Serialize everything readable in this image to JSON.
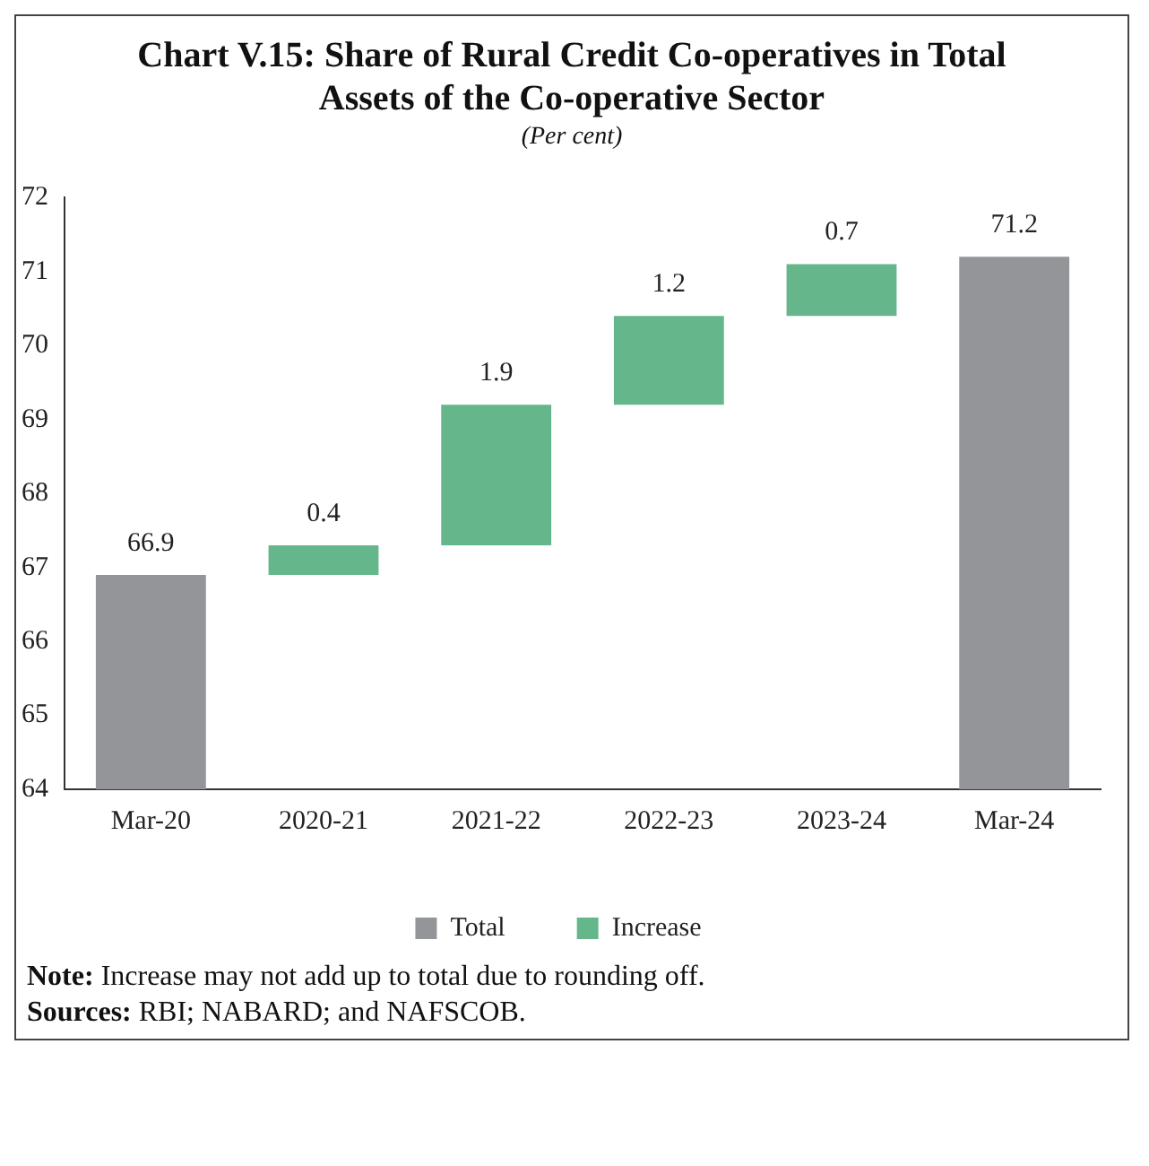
{
  "chart_data": {
    "type": "bar",
    "title": "Chart V.15: Share of Rural Credit Co-operatives in Total Assets of the Co-operative Sector",
    "subtitle": "(Per cent)",
    "categories": [
      "Mar-20",
      "2020-21",
      "2021-22",
      "2022-23",
      "2023-24",
      "Mar-24"
    ],
    "series": [
      {
        "name": "Total",
        "color": "#939598",
        "base": [
          64,
          null,
          null,
          null,
          null,
          64
        ],
        "values": [
          2.9,
          null,
          null,
          null,
          null,
          7.2
        ]
      },
      {
        "name": "Increase",
        "color": "#66b68c",
        "base": [
          null,
          66.9,
          67.3,
          69.2,
          70.4,
          null
        ],
        "values": [
          null,
          0.4,
          1.9,
          1.2,
          0.7,
          null
        ]
      }
    ],
    "value_labels": [
      "66.9",
      "0.4",
      "1.9",
      "1.2",
      "0.7",
      "71.2"
    ],
    "ylim": [
      64,
      72
    ],
    "yticks": [
      64,
      65,
      66,
      67,
      68,
      69,
      70,
      71,
      72
    ],
    "grid": false,
    "legend": "bottom",
    "annotations": [
      "Note: Increase may not add up to total due to rounding off.",
      "Sources: RBI; NABARD; and NAFSCOB."
    ]
  }
}
